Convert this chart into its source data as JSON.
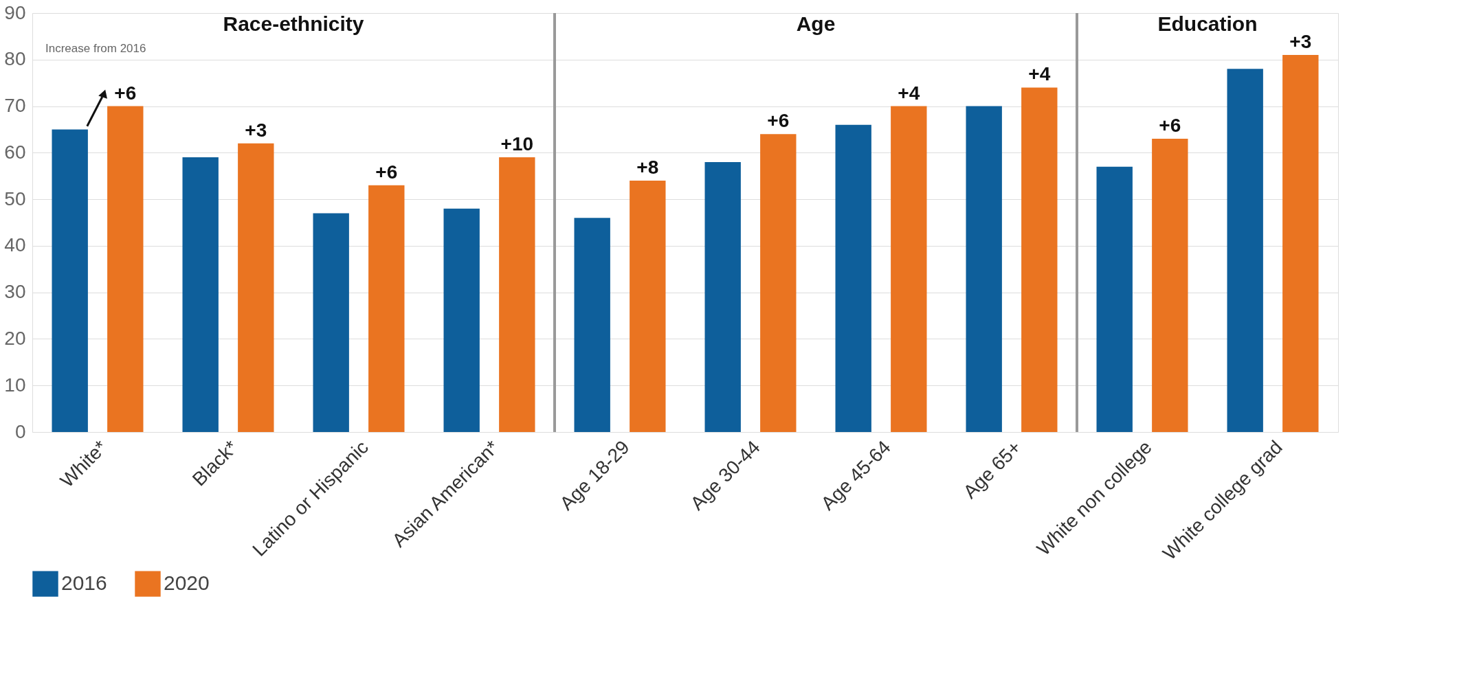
{
  "chart_data": {
    "type": "bar",
    "categories": [
      "White*",
      "Black*",
      "Latino or Hispanic",
      "Asian American*",
      "Age 18-29",
      "Age 30-44",
      "Age 45-64",
      "Age 65+",
      "White non college",
      "White college grad"
    ],
    "series": [
      {
        "name": "2016",
        "color": "#0e5f9b",
        "values": [
          65,
          59,
          47,
          48,
          46,
          58,
          66,
          70,
          57,
          78
        ]
      },
      {
        "name": "2020",
        "color": "#ea7421",
        "values": [
          70,
          62,
          53,
          59,
          54,
          64,
          70,
          74,
          63,
          81
        ]
      }
    ],
    "ylim": [
      0,
      90
    ],
    "yticks": [
      0,
      10,
      20,
      30,
      40,
      50,
      60,
      70,
      80,
      90
    ],
    "grid": "y",
    "legend": "bottom",
    "annotations": [
      "Race-ethnicity",
      "Age",
      "Education",
      "Increase from 2016",
      {
        "text": "+6",
        "x": "White*",
        "y": 70
      },
      {
        "text": "+3",
        "x": "Black*",
        "y": 62
      },
      {
        "text": "+6",
        "x": "Latino or Hispanic",
        "y": 53
      },
      {
        "text": "+10",
        "x": "Asian American*",
        "y": 59
      },
      {
        "text": "+8",
        "x": "Age 18-29",
        "y": 54
      },
      {
        "text": "+6",
        "x": "Age 30-44",
        "y": 64
      },
      {
        "text": "+4",
        "x": "Age 45-64",
        "y": 70
      },
      {
        "text": "+4",
        "x": "Age 65+",
        "y": 74
      },
      {
        "text": "+6",
        "x": "White non college",
        "y": 63
      },
      {
        "text": "+3",
        "x": "White college grad",
        "y": 81
      }
    ]
  }
}
